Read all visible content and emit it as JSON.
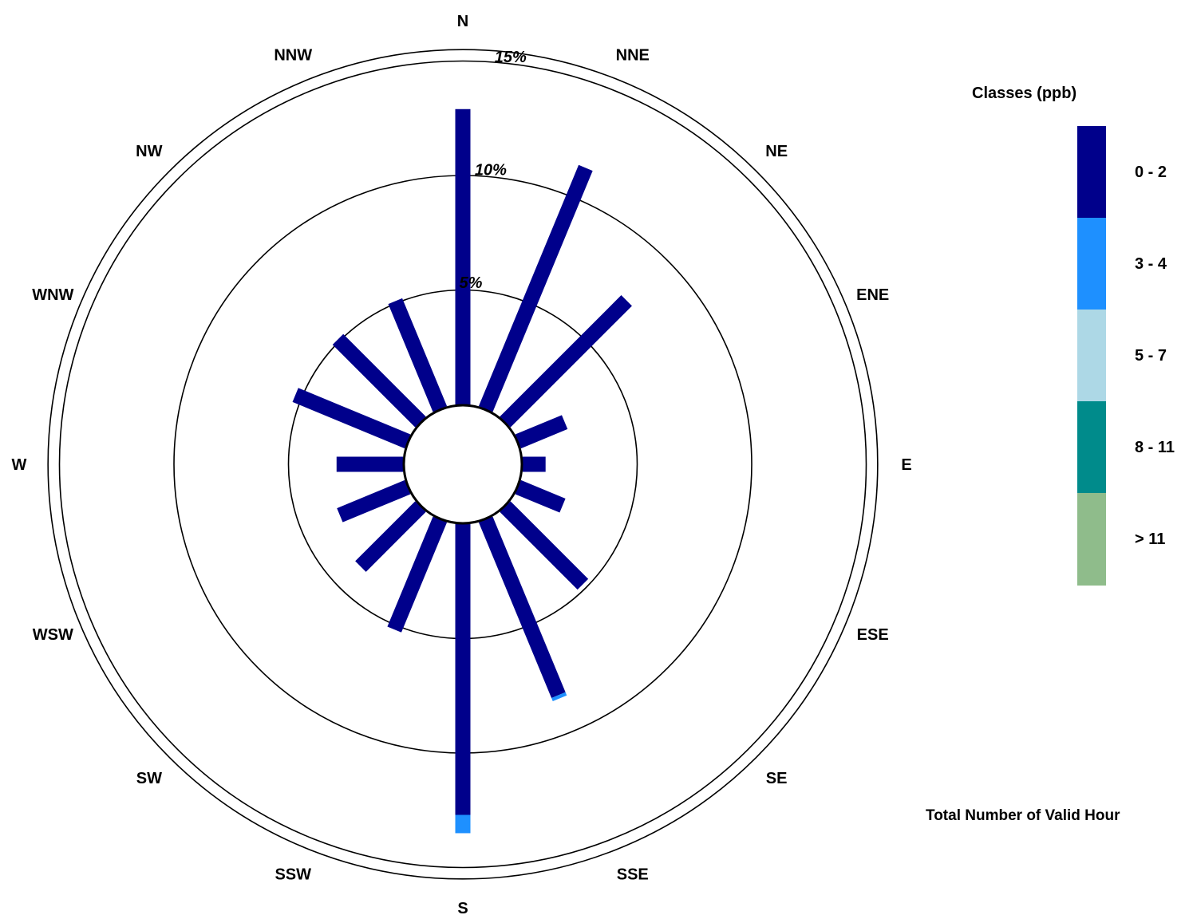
{
  "chart_data": {
    "type": "windrose",
    "title": "",
    "directions": [
      "N",
      "NNE",
      "NE",
      "ENE",
      "E",
      "ESE",
      "SE",
      "SSE",
      "S",
      "SSW",
      "SW",
      "WSW",
      "W",
      "WNW",
      "NW",
      "NNW"
    ],
    "rings": [
      {
        "value": 5,
        "label": "5%"
      },
      {
        "value": 10,
        "label": "10%"
      },
      {
        "value": 15,
        "label": "15%"
      }
    ],
    "rmax": 15.5,
    "legend_title": "Classes (ppb)",
    "classes": [
      {
        "name": "0 - 2",
        "color": "#00008b"
      },
      {
        "name": "3 - 4",
        "color": "#1e90ff"
      },
      {
        "name": "5 - 7",
        "color": "#add8e6"
      },
      {
        "name": "8 - 11",
        "color": "#008b8b"
      },
      {
        "name": "> 11",
        "color": "#8fbc8b"
      }
    ],
    "series": [
      {
        "name": "0 - 2",
        "values": [
          12.9,
          11.4,
          7.5,
          2.2,
          1.0,
          2.1,
          4.8,
          8.3,
          12.7,
          5.2,
          3.7,
          3.2,
          2.9,
          5.3,
          5.1,
          5.1
        ]
      },
      {
        "name": "3 - 4",
        "values": [
          0,
          0,
          0,
          0,
          0,
          0,
          0,
          0.15,
          0.8,
          0,
          0,
          0,
          0,
          0,
          0,
          0
        ]
      },
      {
        "name": "5 - 7",
        "values": [
          0,
          0,
          0,
          0,
          0,
          0,
          0,
          0,
          0,
          0,
          0,
          0,
          0,
          0,
          0,
          0
        ]
      },
      {
        "name": "8 - 11",
        "values": [
          0,
          0,
          0,
          0,
          0,
          0,
          0,
          0,
          0,
          0,
          0,
          0,
          0,
          0,
          0,
          0
        ]
      },
      {
        "name": "> 11",
        "values": [
          0,
          0,
          0,
          0,
          0,
          0,
          0,
          0,
          0,
          0,
          0,
          0,
          0,
          0,
          0,
          0
        ]
      }
    ],
    "footer": "Total Number of Valid Hour"
  }
}
